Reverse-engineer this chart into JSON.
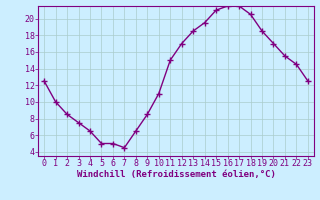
{
  "x": [
    0,
    1,
    2,
    3,
    4,
    5,
    6,
    7,
    8,
    9,
    10,
    11,
    12,
    13,
    14,
    15,
    16,
    17,
    18,
    19,
    20,
    21,
    22,
    23
  ],
  "y": [
    12.5,
    10.0,
    8.5,
    7.5,
    6.5,
    5.0,
    5.0,
    4.5,
    6.5,
    8.5,
    11.0,
    15.0,
    17.0,
    18.5,
    19.5,
    21.0,
    21.5,
    21.5,
    20.5,
    18.5,
    17.0,
    15.5,
    14.5,
    12.5
  ],
  "xlabel": "Windchill (Refroidissement éolien,°C)",
  "xlim": [
    -0.5,
    23.5
  ],
  "ylim": [
    3.5,
    21.5
  ],
  "yticks": [
    4,
    6,
    8,
    10,
    12,
    14,
    16,
    18,
    20
  ],
  "xticks": [
    0,
    1,
    2,
    3,
    4,
    5,
    6,
    7,
    8,
    9,
    10,
    11,
    12,
    13,
    14,
    15,
    16,
    17,
    18,
    19,
    20,
    21,
    22,
    23
  ],
  "line_color": "#800080",
  "marker": "+",
  "bg_color": "#cceeff",
  "grid_color": "#aacccc",
  "axis_color": "#800080",
  "tick_color": "#800080",
  "label_color": "#800080",
  "xlabel_fontsize": 6.5,
  "tick_fontsize": 6,
  "marker_size": 4,
  "line_width": 1.0
}
